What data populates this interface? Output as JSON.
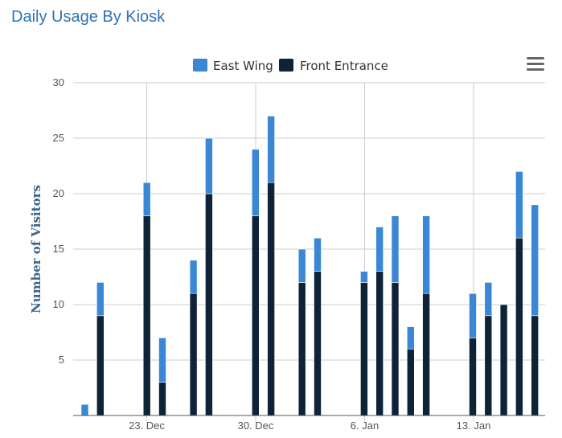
{
  "page": {
    "title": "Daily Usage By Kiosk"
  },
  "menu": {
    "icon": "hamburger-menu-icon"
  },
  "colors": {
    "east_wing": "#3a87d6",
    "front_entrance": "#0e2238",
    "grid": "#cccccc",
    "title": "#2e74b5"
  },
  "chart_data": {
    "type": "bar",
    "stacked": true,
    "title": "",
    "ylabel": "Number of Visitors",
    "xlabel": "",
    "ylim": [
      0,
      30
    ],
    "yticks": [
      "5",
      "10",
      "15",
      "20",
      "25",
      "30"
    ],
    "xticks": [
      "23. Dec",
      "30. Dec",
      "6. Jan",
      "13. Jan"
    ],
    "legend": {
      "position": "top-center",
      "entries": [
        "East Wing",
        "Front Entrance"
      ]
    },
    "grid": {
      "horizontal": true,
      "vertical_at_xticks": true
    },
    "x": [
      "2018-12-19",
      "2018-12-20",
      "2018-12-21",
      "2018-12-22",
      "2018-12-23",
      "2018-12-24",
      "2018-12-25",
      "2018-12-26",
      "2018-12-27",
      "2018-12-28",
      "2018-12-29",
      "2018-12-30",
      "2018-12-31",
      "2019-01-01",
      "2019-01-02",
      "2019-01-03",
      "2019-01-04",
      "2019-01-05",
      "2019-01-06",
      "2019-01-07",
      "2019-01-08",
      "2019-01-09",
      "2019-01-10",
      "2019-01-11",
      "2019-01-12",
      "2019-01-13",
      "2019-01-14",
      "2019-01-15",
      "2019-01-16",
      "2019-01-17",
      "2019-01-18"
    ],
    "series": [
      {
        "name": "Front Entrance",
        "values": [
          0,
          9,
          0,
          0,
          18,
          3,
          0,
          11,
          20,
          0,
          0,
          18,
          21,
          0,
          12,
          13,
          0,
          0,
          12,
          13,
          12,
          6,
          11,
          0,
          0,
          7,
          9,
          10,
          16,
          9,
          0
        ]
      },
      {
        "name": "East Wing",
        "values": [
          1,
          3,
          0,
          0,
          3,
          4,
          0,
          3,
          5,
          0,
          0,
          6,
          6,
          0,
          3,
          3,
          0,
          0,
          1,
          4,
          6,
          2,
          7,
          0,
          0,
          4,
          3,
          0,
          6,
          10,
          0
        ]
      }
    ]
  }
}
